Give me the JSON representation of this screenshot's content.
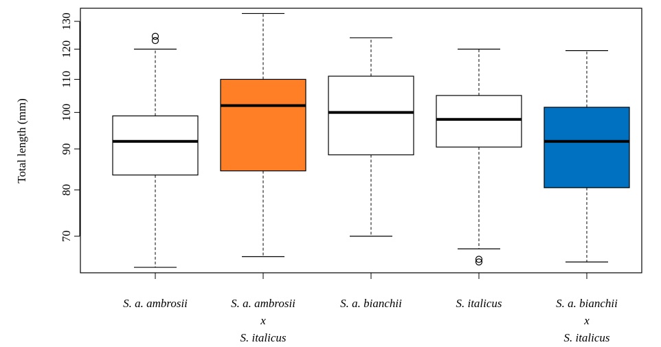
{
  "chart_data": {
    "type": "box",
    "ylabel": "Total length (mm)",
    "xlabel": "",
    "ylim": [
      63,
      135
    ],
    "yscale": "log",
    "yticks": [
      70,
      80,
      90,
      100,
      110,
      120,
      130
    ],
    "categories": [
      [
        "S. a. ambrosii"
      ],
      [
        "S. a. ambrosii",
        "x",
        "S. italicus"
      ],
      [
        "S. a. bianchii"
      ],
      [
        "S. italicus"
      ],
      [
        "S. a. bianchii",
        "x",
        "S. italicus"
      ]
    ],
    "boxes": [
      {
        "whisker_low": 64,
        "q1": 83.5,
        "median": 92,
        "q3": 99,
        "whisker_high": 120,
        "outliers": [
          123,
          124.5
        ],
        "fill": "#ffffff"
      },
      {
        "whisker_low": 66,
        "q1": 84.5,
        "median": 102,
        "q3": 110,
        "whisker_high": 133,
        "outliers": [],
        "fill": "#ff7f27"
      },
      {
        "whisker_low": 70,
        "q1": 88.5,
        "median": 100,
        "q3": 111,
        "whisker_high": 124,
        "outliers": [],
        "fill": "#ffffff"
      },
      {
        "whisker_low": 67.5,
        "q1": 90.5,
        "median": 98,
        "q3": 105,
        "whisker_high": 120,
        "outliers": [
          65.5,
          65
        ],
        "fill": "#ffffff"
      },
      {
        "whisker_low": 65,
        "q1": 80.5,
        "median": 92,
        "q3": 101.5,
        "whisker_high": 119.5,
        "outliers": [],
        "fill": "#0070c0"
      }
    ]
  }
}
